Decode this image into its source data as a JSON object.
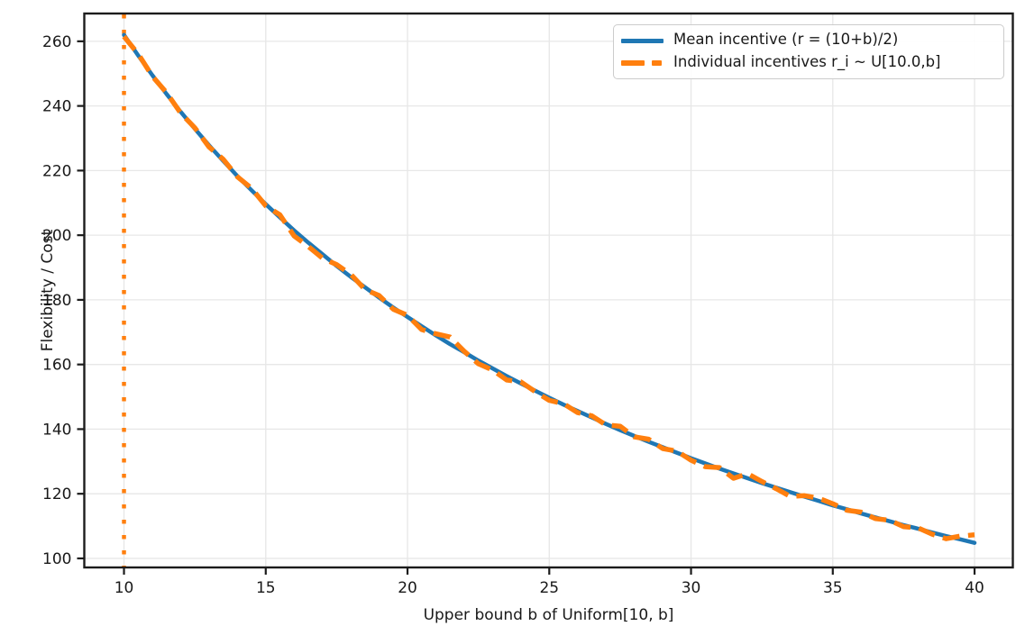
{
  "chart_data": {
    "type": "line",
    "title": "",
    "xlabel": "Upper bound b of Uniform[10, b]",
    "ylabel": "Flexibility / Cost",
    "xlim": [
      8.6,
      41.35
    ],
    "ylim": [
      97.2,
      268.6
    ],
    "xticks": [
      10,
      15,
      20,
      25,
      30,
      35,
      40
    ],
    "yticks": [
      100,
      120,
      140,
      160,
      180,
      200,
      220,
      240,
      260
    ],
    "grid": true,
    "legend_position": "upper right",
    "colors": {
      "mean_line": "#1f77b4",
      "individual_line": "#ff7f0e",
      "grid": "#e7e7e7",
      "spine": "#1c1c1c",
      "text": "#191919",
      "legend_border": "#cccccc"
    },
    "x": [
      10,
      10.5,
      11,
      11.5,
      12,
      12.5,
      13,
      13.5,
      14,
      14.5,
      15,
      15.5,
      16,
      16.5,
      17,
      17.5,
      18,
      18.5,
      19,
      19.5,
      20,
      20.5,
      21,
      21.5,
      22,
      22.5,
      23,
      23.5,
      24,
      24.5,
      25,
      25.5,
      26,
      26.5,
      27,
      27.5,
      28,
      28.5,
      29,
      29.5,
      30,
      30.5,
      31,
      31.5,
      32,
      32.5,
      33,
      33.5,
      34,
      34.5,
      35,
      35.5,
      36,
      36.5,
      37,
      37.5,
      38,
      38.5,
      39,
      39.5,
      40
    ],
    "series": [
      {
        "name": "Mean incentive (r = (10+b)/2)",
        "color": "#1f77b4",
        "line_style": "solid",
        "values": [
          262.0,
          255.6,
          249.5,
          243.7,
          238.2,
          232.9,
          227.8,
          223.0,
          218.3,
          213.9,
          209.6,
          205.5,
          201.5,
          197.7,
          194.1,
          190.5,
          187.1,
          183.9,
          180.7,
          177.6,
          174.7,
          171.8,
          169.0,
          166.3,
          163.8,
          161.2,
          158.8,
          156.4,
          154.1,
          151.9,
          149.7,
          147.6,
          145.6,
          143.6,
          141.6,
          139.7,
          137.9,
          136.1,
          134.4,
          132.7,
          131.0,
          129.4,
          127.8,
          126.3,
          124.8,
          123.3,
          121.9,
          120.5,
          119.1,
          117.8,
          116.4,
          115.2,
          113.9,
          112.7,
          111.5,
          110.3,
          109.2,
          108.0,
          106.9,
          105.9,
          104.8
        ]
      },
      {
        "name": "Individual incentives r_i ~ U[10.0,b]",
        "color": "#ff7f0e",
        "line_style": "dashed",
        "values": [
          261.5,
          256.1,
          249.2,
          244.1,
          237.8,
          233.2,
          227.3,
          223.5,
          218.1,
          214.5,
          209.1,
          206.3,
          199.8,
          196.5,
          192.9,
          190.9,
          187.9,
          183.2,
          181.3,
          177.1,
          175.2,
          170.8,
          169.5,
          168.5,
          164.1,
          160.2,
          158.3,
          155.2,
          154.6,
          151.6,
          148.9,
          147.9,
          145.1,
          144.1,
          141.3,
          140.9,
          137.6,
          136.9,
          134.0,
          133.2,
          130.4,
          128.4,
          128.1,
          124.8,
          126.2,
          123.8,
          121.6,
          119.2,
          119.4,
          118.6,
          116.9,
          114.9,
          114.3,
          112.3,
          111.8,
          109.8,
          109.5,
          107.5,
          106.1,
          106.9,
          107.3
        ]
      }
    ],
    "vline": {
      "x": 10,
      "color": "#ff7f0e",
      "line_style": "dotted"
    }
  }
}
